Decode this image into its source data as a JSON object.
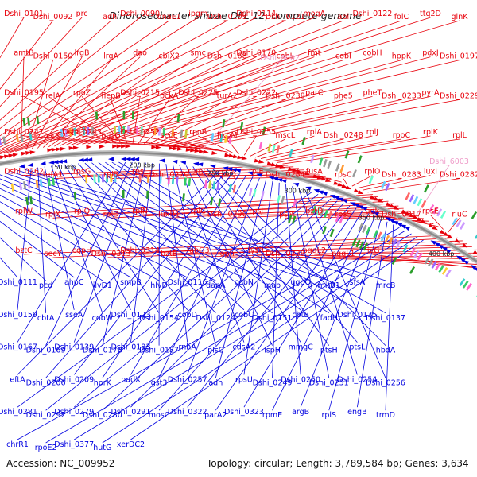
{
  "title": "Dinoroseobacter shibae DFL 12, complete genome",
  "footer": {
    "accession": "Accession: NC_009952",
    "summary": "Topology: circular; Length: 3,789,584 bp; Genes: 3,634"
  },
  "colors": {
    "forward": "#e8000b",
    "reverse": "#0000e0",
    "highlight": "#ef9cc9",
    "backbone": "#8a8a8a"
  },
  "ruler_ticks": [
    "100 kbp",
    "150 kbp",
    "200 kbp",
    "250 kbp",
    "300 kbp",
    "350 kbp",
    "400 kbp"
  ],
  "forward_labels": [
    "Dshi_0101",
    "Dshi_0092",
    "prc",
    "adhI",
    "Dshi_0090",
    "dnaE1",
    "ipgm",
    "Dshi_0109",
    "Dshi_0114",
    "Dshi_0121",
    "mogA",
    "abi",
    "Dshi_0122",
    "folC",
    "ttg2D",
    "glnK",
    "amtB",
    "Dshi_0150",
    "lrgB",
    "lrgA",
    "dao",
    "cbiX2",
    "smc",
    "Dshi_0168",
    "Dshi_0170",
    "cobL",
    "fmt",
    "cobI",
    "cobH",
    "hppK",
    "pdxJ",
    "Dshi_0197",
    "Dshi_0195",
    "relA",
    "rpoZ",
    "flepB",
    "Dshi_0215",
    "pckA",
    "Dshi_0225",
    "turA2",
    "Dshi_0222",
    "Dshi_0238",
    "parC",
    "phe5",
    "pheT",
    "Dshi_0233",
    "pyrA",
    "Dshi_0229",
    "Dshi_0247",
    "asnC",
    "Dshi_0243",
    "nusG",
    "Dshi_0252",
    "secE",
    "rpoB",
    "fikbM",
    "Dshi_0255",
    "mscL",
    "rplA",
    "Dshi_0248",
    "rplJ",
    "rpoC",
    "rplK",
    "rplL",
    "Dshi_0262",
    "tufA1",
    "rpsG",
    "rplB",
    "rpsL",
    "Dshi_0270",
    "rpmC",
    "rpsQ",
    "rplE",
    "Dshi_0284",
    "fusA",
    "rpsC",
    "rplO",
    "Dshi_0283",
    "luxI",
    "Dshi_0282",
    "rplW",
    "rplX",
    "rplQ",
    "rplD",
    "rplN",
    "luxR1",
    "rplC",
    "Dshi_0290",
    "rpsJ",
    "rpsM",
    "bztD",
    "rpsS",
    "adk",
    "Dshi_0317",
    "rpsE",
    "rluC",
    "bztC",
    "secY",
    "cgpH",
    "Dshi_0313",
    "Dshi_0314",
    "bztB",
    "fabG3",
    "aph",
    "lysR",
    "Dshi_0338",
    "pqqL2",
    "pqqL1",
    "livG"
  ],
  "highlighted_labels": [
    "Dshi_6002",
    "Dshi_6003"
  ],
  "reverse_labels": [
    "Dshi_0111",
    "pcd",
    "ahpC",
    "ilvD1",
    "smpB",
    "hlvD",
    "Dshi_0116",
    "dapA",
    "cobN",
    "map",
    "ugpQ",
    "mitB1",
    "sfsA",
    "mrcB",
    "Dshi_0159",
    "cbtA",
    "sseA",
    "cobW",
    "Dshi_0123",
    "Dshi_0154",
    "cobD",
    "Dshi_0124",
    "cobC",
    "Dshi_0151",
    "cbtB",
    "fadH",
    "Dshi_0135",
    "Dshi_0137",
    "Dshi_0167",
    "Dshi_0169",
    "Dshi_0139",
    "Dshi_0178",
    "Dshi_0183",
    "Dshi_0187",
    "rnhA",
    "plsC",
    "cdsA2",
    "ispH",
    "mmgC",
    "ptsH",
    "ptsL",
    "hbdA",
    "eftA",
    "Dshi_0206",
    "Dshi_0209",
    "hprK",
    "nadX",
    "gst3",
    "Dshi_0257",
    "adh",
    "rpsU",
    "Dshi_0249",
    "Dshi_0250",
    "Dshi_0251",
    "Dshi_0254",
    "Dshi_0256",
    "Dshi_0281",
    "Dshi_0292",
    "Dshi_0279",
    "Dshi_0280",
    "Dshi_0291",
    "mosC",
    "Dshi_0322",
    "parA2",
    "Dshi_0323",
    "rpmE",
    "argB",
    "rplS",
    "engB",
    "trmD",
    "chrR1",
    "rpoE2",
    "Dshi_0377",
    "hutG",
    "xerDC2"
  ]
}
